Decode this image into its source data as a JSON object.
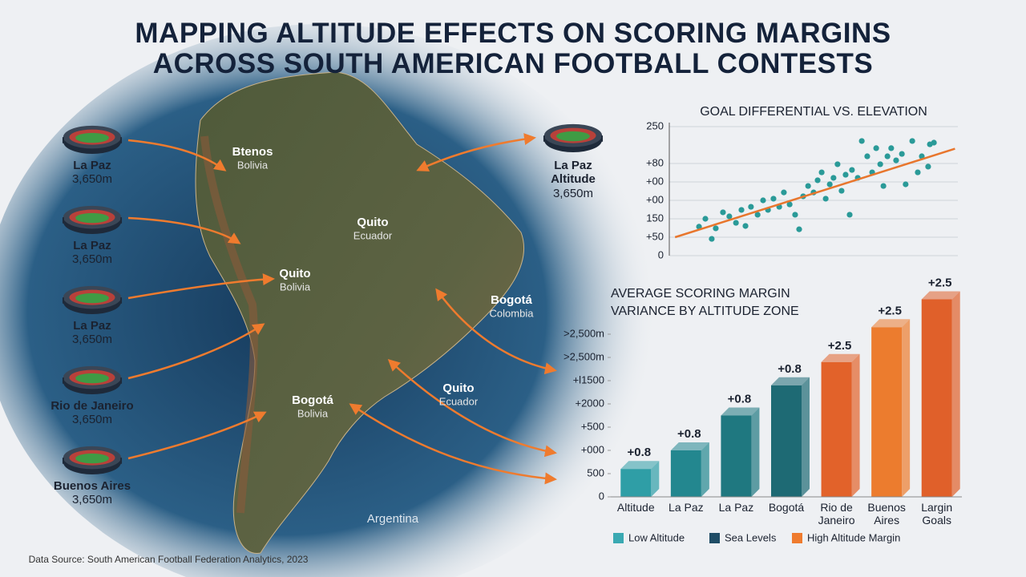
{
  "title_lines": [
    "MAPPING ALTITUDE EFFECTS ON SCORING MARGINS",
    "ACROSS SOUTH AMERICAN FOOTBALL CONTESTS"
  ],
  "stadiums": [
    {
      "name": "La Paz",
      "elevation": "3,650m"
    },
    {
      "name": "La Paz",
      "elevation": "3,650m"
    },
    {
      "name": "La Paz",
      "elevation": "3,650m"
    },
    {
      "name": "Rio de Janeiro",
      "elevation": "3,650m"
    },
    {
      "name": "Buenos Aires",
      "elevation": "3,650m"
    },
    {
      "name": "La Paz\nAltitude",
      "elevation": "3,650m"
    }
  ],
  "map_labels": [
    {
      "name": "Btenos",
      "sub": "Bolivia"
    },
    {
      "name": "Quito",
      "sub": "Ecuador"
    },
    {
      "name": "Quito",
      "sub": "Bolivia"
    },
    {
      "name": "Bogotá",
      "sub": "Colombia"
    },
    {
      "name": "Quito",
      "sub": "Ecuador"
    },
    {
      "name": "Bogotá",
      "sub": "Bolivia"
    }
  ],
  "map_region": "Argentina",
  "source": "Data Source: South American Football Federation Analytics, 2023",
  "chart_data": [
    {
      "type": "scatter",
      "title": "GOAL DIFFERENTIAL VS. ELEVATION",
      "x": [
        10.3,
        12.5,
        14.7,
        16.1,
        18.6,
        20.8,
        23.1,
        25.0,
        26.4,
        28.3,
        30.6,
        32.5,
        34.2,
        36.1,
        38.1,
        39.7,
        41.7,
        43.6,
        45.0,
        46.4,
        48.1,
        50.0,
        51.4,
        52.8,
        54.2,
        55.6,
        56.9,
        58.3,
        59.7,
        61.1,
        62.5,
        63.3,
        65.3,
        66.7,
        68.6,
        70.3,
        71.7,
        73.1,
        74.2,
        75.6,
        76.9,
        78.6,
        80.6,
        81.9,
        84.2,
        86.1,
        87.5,
        89.7,
        90.3,
        91.7
      ],
      "series": [
        {
          "color": "#2a9a98",
          "values": [
            1.57,
            2.0,
            0.91,
            1.48,
            2.35,
            2.13,
            1.78,
            2.48,
            1.61,
            2.65,
            2.22,
            3.0,
            2.48,
            3.09,
            2.65,
            3.43,
            2.78,
            2.22,
            1.43,
            3.22,
            3.78,
            3.43,
            4.09,
            4.52,
            3.09,
            3.87,
            4.22,
            4.96,
            3.52,
            4.39,
            2.22,
            4.65,
            4.22,
            6.22,
            5.39,
            4.52,
            5.83,
            4.96,
            3.78,
            5.39,
            5.83,
            5.17,
            5.52,
            3.87,
            6.22,
            4.52,
            5.39,
            4.83,
            6.04,
            6.13
          ]
        }
      ],
      "trend": {
        "x": [
          2,
          99
        ],
        "values": [
          1.0,
          5.8
        ],
        "color": "#e8762d"
      },
      "xlim": [
        0,
        100
      ],
      "ylim": [
        0,
        7
      ],
      "yticks": [
        0,
        {
          "value": 1,
          "label": "+50"
        },
        {
          "value": 2,
          "label": "150"
        },
        {
          "value": 3,
          "label": "+00"
        },
        {
          "value": 4,
          "label": "+00"
        },
        {
          "value": 5,
          "label": "+80"
        },
        {
          "value": 7,
          "label": "250"
        }
      ],
      "grid": true
    },
    {
      "type": "bar",
      "title": "AVERAGE SCORING MARGIN VARIANCE BY ALTITUDE ZONE",
      "categories": [
        "Altitude",
        "La Paz",
        "La Paz",
        "Bogotá",
        "Rio de\nJaneiro",
        "Buenos\nAires",
        "Largin\nGoals"
      ],
      "values": [
        1.2,
        2.0,
        3.5,
        4.8,
        5.8,
        7.3,
        8.5
      ],
      "colors": [
        "#2f9ea6",
        "#23878f",
        "#1f7880",
        "#1e6a74",
        "#e2622a",
        "#ec7c2e",
        "#e0602a"
      ],
      "bar_annotations": [
        "+0.8",
        "+0.8",
        "+0.8",
        "+0.8",
        "+2.5",
        "+2.5",
        "+2.5"
      ],
      "ylim": [
        0,
        9
      ],
      "yticks": [
        0,
        {
          "value": 1,
          "label": "500"
        },
        {
          "value": 2,
          "label": "+000"
        },
        {
          "value": 3,
          "label": "+500"
        },
        {
          "value": 4,
          "label": "+2000"
        },
        {
          "value": 5,
          "label": "+l1500"
        },
        {
          "value": 6,
          "label": ">2,500m"
        },
        {
          "value": 7,
          "label": ">2,500m"
        }
      ],
      "grid": false,
      "legend": [
        {
          "name": "Low Altitude",
          "color": "#3aa9b2"
        },
        {
          "name": "Sea Levels",
          "color": "#1f4d66"
        },
        {
          "name": "High Altitude Margin",
          "color": "#ef7b2e"
        }
      ]
    }
  ]
}
